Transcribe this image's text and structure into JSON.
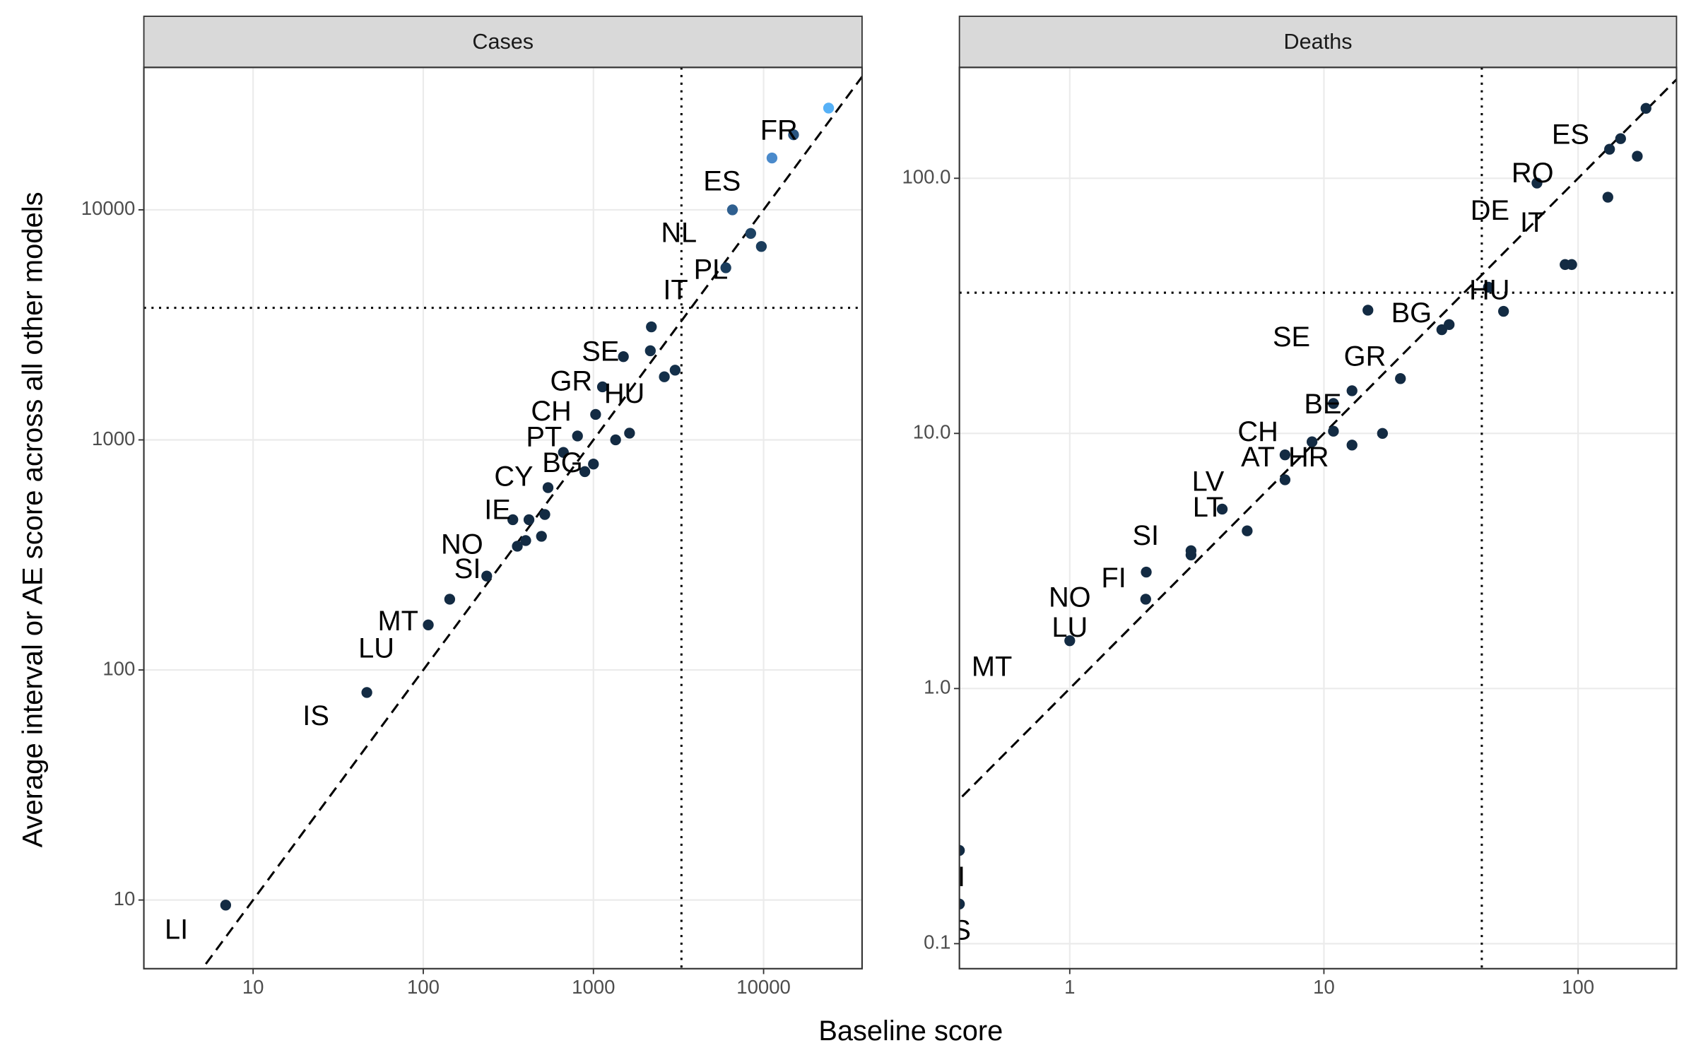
{
  "axis_titles": {
    "x": "Baseline score",
    "y": "Average interval or AE score across all other models"
  },
  "chart_data": [
    {
      "type": "scatter",
      "title": "Cases",
      "xlog": true,
      "ylog": true,
      "grid": true,
      "identity_line": true,
      "xlim": [
        2.28,
        37900
      ],
      "ylim": [
        5.03,
        41600
      ],
      "xticks": [
        10,
        100,
        1000,
        10000
      ],
      "yticks": [
        10,
        100,
        1000,
        10000
      ],
      "vline": 3290,
      "hline": 3750,
      "x": [
        6.9,
        46.6,
        107,
        143,
        236,
        336,
        357,
        400,
        418,
        495,
        518,
        541,
        666,
        806,
        890,
        1000,
        1030,
        1130,
        1350,
        1500,
        1630,
        2160,
        2190,
        2610,
        3020,
        6000,
        6560,
        8400,
        9700,
        11200,
        15000,
        24100
      ],
      "values": [
        9.5,
        79.8,
        157,
        203,
        256,
        450,
        345,
        365,
        450,
        381,
        474,
        620,
        882,
        1040,
        728,
        785,
        1290,
        1700,
        1000,
        2300,
        1070,
        2440,
        3100,
        1880,
        2010,
        5600,
        10000,
        7900,
        6930,
        16800,
        21200,
        27700
      ],
      "colors": [
        "#132b43",
        "#132b43",
        "#132b43",
        "#132b43",
        "#132b43",
        "#132b43",
        "#132b43",
        "#132b43",
        "#132b43",
        "#132b43",
        "#132b43",
        "#132b43",
        "#132b43",
        "#132b43",
        "#132b43",
        "#132b43",
        "#132b43",
        "#132b43",
        "#132b43",
        "#132b43",
        "#132b43",
        "#14304a",
        "#14304a",
        "#14304a",
        "#14304a",
        "#1b3d5c",
        "#2f5f8f",
        "#1d4263",
        "#1b3d5c",
        "#4a8acb",
        "#2a5580",
        "#56b1f7"
      ],
      "annotations": [
        {
          "text": "LI",
          "x": 3.54,
          "y": 7.3
        },
        {
          "text": "IS",
          "x": 23.4,
          "y": 62
        },
        {
          "text": "LU",
          "x": 53,
          "y": 122
        },
        {
          "text": "MT",
          "x": 71,
          "y": 160
        },
        {
          "text": "SI",
          "x": 182,
          "y": 270
        },
        {
          "text": "NO",
          "x": 169,
          "y": 345
        },
        {
          "text": "IE",
          "x": 273,
          "y": 488
        },
        {
          "text": "CY",
          "x": 340,
          "y": 680
        },
        {
          "text": "BG",
          "x": 658,
          "y": 780
        },
        {
          "text": "PT",
          "x": 512,
          "y": 1010
        },
        {
          "text": "CH",
          "x": 565,
          "y": 1310
        },
        {
          "text": "GR",
          "x": 740,
          "y": 1770
        },
        {
          "text": "HU",
          "x": 1520,
          "y": 1560
        },
        {
          "text": "SE",
          "x": 1100,
          "y": 2380
        },
        {
          "text": "IT",
          "x": 3040,
          "y": 4400
        },
        {
          "text": "PL",
          "x": 4900,
          "y": 5400
        },
        {
          "text": "NL",
          "x": 3180,
          "y": 7800
        },
        {
          "text": "ES",
          "x": 5700,
          "y": 13100
        },
        {
          "text": "FR",
          "x": 12300,
          "y": 21800
        }
      ]
    },
    {
      "type": "scatter",
      "title": "Deaths",
      "xlog": true,
      "ylog": true,
      "grid": true,
      "identity_line": true,
      "xlim": [
        0.368,
        244
      ],
      "ylim": [
        0.0798,
        272
      ],
      "xticks": [
        1,
        10,
        100
      ],
      "yticks": [
        0.1,
        {
          "value": 1,
          "label": "1.0"
        },
        {
          "value": 10,
          "label": "10.0"
        },
        {
          "value": 100,
          "label": "100.0"
        }
      ],
      "vline": 41.8,
      "hline": 35.6,
      "x": [
        0.368,
        0.368,
        1,
        1.99,
        2,
        3,
        3,
        3.98,
        4.99,
        7.03,
        7.03,
        8.98,
        10.9,
        10.9,
        12.9,
        12.9,
        14.9,
        17,
        20,
        29.1,
        31.1,
        44.4,
        50.9,
        68.9,
        88.9,
        94.4,
        131,
        133,
        147,
        171,
        185
      ],
      "values": [
        0.232,
        0.143,
        1.54,
        2.24,
        2.86,
        3.34,
        3.47,
        5.05,
        4.15,
        6.58,
        8.24,
        9.27,
        13.1,
        10.2,
        14.7,
        9,
        30.4,
        10,
        16.4,
        25.5,
        26.7,
        37.4,
        30.1,
        95.8,
        45.9,
        45.9,
        84.3,
        130,
        143,
        122,
        188
      ],
      "color": "#132b43",
      "annotations": [
        {
          "text": "S",
          "x": 0.375,
          "y": 0.111
        },
        {
          "text": "I",
          "x": 0.375,
          "y": 0.18
        },
        {
          "text": "MT",
          "x": 0.494,
          "y": 1.2
        },
        {
          "text": "LU",
          "x": 1,
          "y": 1.71
        },
        {
          "text": "NO",
          "x": 1,
          "y": 2.24
        },
        {
          "text": "FI",
          "x": 1.49,
          "y": 2.67
        },
        {
          "text": "SI",
          "x": 1.99,
          "y": 3.91
        },
        {
          "text": "LT",
          "x": 3.5,
          "y": 5.05
        },
        {
          "text": "LV",
          "x": 3.5,
          "y": 6.38
        },
        {
          "text": "CH",
          "x": 5.5,
          "y": 10
        },
        {
          "text": "AT",
          "x": 5.5,
          "y": 7.93
        },
        {
          "text": "HR",
          "x": 8.7,
          "y": 7.93
        },
        {
          "text": "BE",
          "x": 9.9,
          "y": 12.8
        },
        {
          "text": "GR",
          "x": 14.5,
          "y": 19.7
        },
        {
          "text": "SE",
          "x": 7.45,
          "y": 23.5
        },
        {
          "text": "BG",
          "x": 22.1,
          "y": 29.2
        },
        {
          "text": "HU",
          "x": 44.8,
          "y": 35.9
        },
        {
          "text": "IT",
          "x": 66.2,
          "y": 65.9
        },
        {
          "text": "DE",
          "x": 45,
          "y": 73.5
        },
        {
          "text": "RO",
          "x": 66.2,
          "y": 103
        },
        {
          "text": "ES",
          "x": 93.4,
          "y": 146
        }
      ]
    }
  ]
}
